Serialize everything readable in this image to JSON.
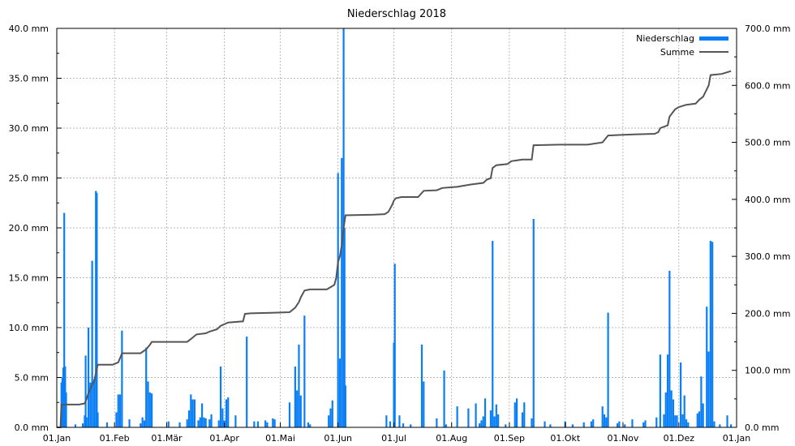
{
  "chart_data": {
    "type": "bar",
    "title": "Niederschlag 2018",
    "x_ticks": [
      "01.Jan",
      "01.Feb",
      "01.Mär",
      "01.Apr",
      "01.Mai",
      "01.Jun",
      "01.Jul",
      "01.Aug",
      "01.Sep",
      "01.Okt",
      "01.Nov",
      "01.Dez",
      "01.Jan"
    ],
    "y_left_ticks": [
      "0.0 mm",
      "5.0 mm",
      "10.0 mm",
      "15.0 mm",
      "20.0 mm",
      "25.0 mm",
      "30.0 mm",
      "35.0 mm",
      "40.0 mm"
    ],
    "y_right_ticks": [
      "0.0 mm",
      "100.0 mm",
      "200.0 mm",
      "300.0 mm",
      "400.0 mm",
      "500.0 mm",
      "600.0 mm",
      "700.0 mm"
    ],
    "ylim_left": [
      0,
      40
    ],
    "ylim_right": [
      0,
      700
    ],
    "grid": true,
    "legend_position": "top-right",
    "colors": {
      "bars": "#0a7ff5",
      "line": "#555555"
    },
    "series": [
      {
        "name": "Niederschlag",
        "kind": "bar",
        "axis": "left",
        "points": [
          [
            2.5,
            4.5
          ],
          [
            3,
            5
          ],
          [
            3.5,
            6
          ],
          [
            4,
            21.5
          ],
          [
            4.5,
            6.1
          ],
          [
            5,
            3.5
          ],
          [
            10,
            0.3
          ],
          [
            14,
            0.4
          ],
          [
            15,
            1.2
          ],
          [
            15.5,
            7.2
          ],
          [
            16,
            1
          ],
          [
            17,
            10
          ],
          [
            18,
            4.5
          ],
          [
            19,
            16.7
          ],
          [
            20,
            4.8
          ],
          [
            21,
            23.7
          ],
          [
            21.5,
            23.5
          ],
          [
            22,
            1.5
          ],
          [
            27,
            0.5
          ],
          [
            32,
            1.5
          ],
          [
            33,
            3.3
          ],
          [
            34,
            3.3
          ],
          [
            35,
            9.7
          ],
          [
            39,
            0.8
          ],
          [
            45,
            0.4
          ],
          [
            46,
            1
          ],
          [
            47,
            0.7
          ],
          [
            48,
            8
          ],
          [
            49,
            4.6
          ],
          [
            50,
            3.5
          ],
          [
            51,
            3.4
          ],
          [
            60,
            0.6
          ],
          [
            66,
            0.5
          ],
          [
            70,
            0.8
          ],
          [
            71,
            1.7
          ],
          [
            72,
            3.3
          ],
          [
            73,
            2.8
          ],
          [
            74,
            2.8
          ],
          [
            76,
            0.7
          ],
          [
            77,
            1
          ],
          [
            78,
            2.4
          ],
          [
            79,
            1
          ],
          [
            80,
            0.9
          ],
          [
            82,
            0.8
          ],
          [
            83,
            1.3
          ],
          [
            87,
            0.7
          ],
          [
            88,
            6.1
          ],
          [
            89,
            1.9
          ],
          [
            90,
            0.7
          ],
          [
            91,
            2.8
          ],
          [
            92,
            3
          ],
          [
            96,
            1.2
          ],
          [
            102,
            9.1
          ],
          [
            106,
            0.6
          ],
          [
            108,
            0.6
          ],
          [
            112,
            0.7
          ],
          [
            113,
            0.5
          ],
          [
            116,
            0.9
          ],
          [
            117,
            0.8
          ],
          [
            125,
            2.5
          ],
          [
            128,
            6.1
          ],
          [
            129,
            3.7
          ],
          [
            130,
            8.3
          ],
          [
            131,
            3.2
          ],
          [
            133,
            11.2
          ],
          [
            135,
            0.5
          ],
          [
            136,
            0.3
          ],
          [
            146,
            1.2
          ],
          [
            147,
            1.9
          ],
          [
            148,
            2.7
          ],
          [
            151,
            25.5
          ],
          [
            152,
            6.9
          ],
          [
            153,
            27
          ],
          [
            154,
            40
          ],
          [
            154.5,
            20
          ],
          [
            155,
            4.2
          ],
          [
            177,
            1.2
          ],
          [
            179,
            0.6
          ],
          [
            181,
            8.5
          ],
          [
            181.5,
            16.4
          ],
          [
            184,
            1.2
          ],
          [
            186,
            0.4
          ],
          [
            190,
            0.3
          ],
          [
            196,
            8.3
          ],
          [
            197,
            4.6
          ],
          [
            204,
            0.9
          ],
          [
            208,
            5.7
          ],
          [
            209,
            0.3
          ],
          [
            215,
            2.1
          ],
          [
            221,
            1.9
          ],
          [
            225,
            2.4
          ],
          [
            227,
            0.4
          ],
          [
            228,
            0.7
          ],
          [
            229,
            1.1
          ],
          [
            230,
            2.9
          ],
          [
            233,
            1.7
          ],
          [
            234,
            18.7
          ],
          [
            235,
            1.1
          ],
          [
            236,
            2.3
          ],
          [
            237,
            1.3
          ],
          [
            241,
            0.3
          ],
          [
            246,
            2.5
          ],
          [
            247,
            2.9
          ],
          [
            250,
            1.5
          ],
          [
            251,
            2.5
          ],
          [
            255,
            0.9
          ],
          [
            256,
            20.9
          ],
          [
            262,
            0.6
          ],
          [
            265,
            0.3
          ],
          [
            273,
            0.6
          ],
          [
            277,
            0.3
          ],
          [
            283,
            0.5
          ],
          [
            287,
            0.6
          ],
          [
            288,
            0.8
          ],
          [
            293,
            2.1
          ],
          [
            294,
            1.3
          ],
          [
            295,
            1
          ],
          [
            296,
            11.5
          ],
          [
            301,
            0.4
          ],
          [
            302,
            0.6
          ],
          [
            305,
            0.3
          ],
          [
            309,
            0.8
          ],
          [
            315,
            0.5
          ],
          [
            316,
            0.7
          ],
          [
            322,
            1
          ],
          [
            324,
            7.3
          ],
          [
            326,
            1.3
          ],
          [
            327,
            3.5
          ],
          [
            328,
            7.3
          ],
          [
            329,
            15.7
          ],
          [
            330,
            3.7
          ],
          [
            331,
            2.8
          ],
          [
            332,
            1.2
          ],
          [
            333,
            1.2
          ],
          [
            335,
            6.5
          ],
          [
            336,
            1.3
          ],
          [
            337,
            3.2
          ],
          [
            338,
            0.8
          ],
          [
            339,
            0.5
          ],
          [
            344,
            1.4
          ],
          [
            345,
            1.6
          ],
          [
            346,
            5.1
          ],
          [
            347,
            2.4
          ],
          [
            349,
            12.1
          ],
          [
            350,
            7.6
          ],
          [
            351,
            18.7
          ],
          [
            352,
            18.6
          ],
          [
            353,
            0.6
          ],
          [
            356,
            0.3
          ],
          [
            360,
            1.2
          ],
          [
            362,
            0.3
          ]
        ]
      },
      {
        "name": "Summe",
        "kind": "line",
        "axis": "right",
        "points": [
          [
            0,
            0
          ],
          [
            2,
            0
          ],
          [
            2.5,
            40
          ],
          [
            12,
            40
          ],
          [
            15,
            42
          ],
          [
            16,
            50
          ],
          [
            17,
            60
          ],
          [
            19,
            75
          ],
          [
            20,
            80
          ],
          [
            21,
            95
          ],
          [
            22,
            110
          ],
          [
            30,
            110
          ],
          [
            33,
            114
          ],
          [
            35,
            130
          ],
          [
            45,
            130
          ],
          [
            48,
            137
          ],
          [
            50,
            145
          ],
          [
            51,
            150
          ],
          [
            70,
            150
          ],
          [
            72,
            155
          ],
          [
            75,
            163
          ],
          [
            80,
            165
          ],
          [
            82,
            168
          ],
          [
            86,
            172
          ],
          [
            88,
            178
          ],
          [
            92,
            184
          ],
          [
            100,
            186
          ],
          [
            101,
            199
          ],
          [
            104,
            200
          ],
          [
            115,
            201
          ],
          [
            125,
            202
          ],
          [
            128,
            210
          ],
          [
            130,
            220
          ],
          [
            131,
            228
          ],
          [
            133,
            240
          ],
          [
            136,
            242
          ],
          [
            145,
            242
          ],
          [
            147,
            246
          ],
          [
            149,
            250
          ],
          [
            150,
            262
          ],
          [
            151,
            290
          ],
          [
            152,
            300
          ],
          [
            153,
            320
          ],
          [
            154,
            350
          ],
          [
            155,
            372
          ],
          [
            170,
            373
          ],
          [
            176,
            374
          ],
          [
            178,
            378
          ],
          [
            180,
            390
          ],
          [
            181,
            398
          ],
          [
            182,
            402
          ],
          [
            185,
            404
          ],
          [
            194,
            404
          ],
          [
            197,
            415
          ],
          [
            204,
            416
          ],
          [
            207,
            420
          ],
          [
            215,
            422
          ],
          [
            222,
            426
          ],
          [
            229,
            429
          ],
          [
            231,
            435
          ],
          [
            233,
            437
          ],
          [
            234,
            455
          ],
          [
            236,
            460
          ],
          [
            242,
            462
          ],
          [
            244,
            467
          ],
          [
            250,
            470
          ],
          [
            255,
            470
          ],
          [
            256,
            495
          ],
          [
            270,
            496
          ],
          [
            285,
            496
          ],
          [
            293,
            500
          ],
          [
            296,
            512
          ],
          [
            310,
            514
          ],
          [
            321,
            515
          ],
          [
            323,
            518
          ],
          [
            324,
            525
          ],
          [
            328,
            530
          ],
          [
            329,
            545
          ],
          [
            332,
            558
          ],
          [
            334,
            562
          ],
          [
            338,
            566
          ],
          [
            343,
            568
          ],
          [
            345,
            575
          ],
          [
            347,
            580
          ],
          [
            350,
            600
          ],
          [
            351,
            618
          ],
          [
            357,
            620
          ],
          [
            362,
            625
          ]
        ]
      }
    ]
  }
}
